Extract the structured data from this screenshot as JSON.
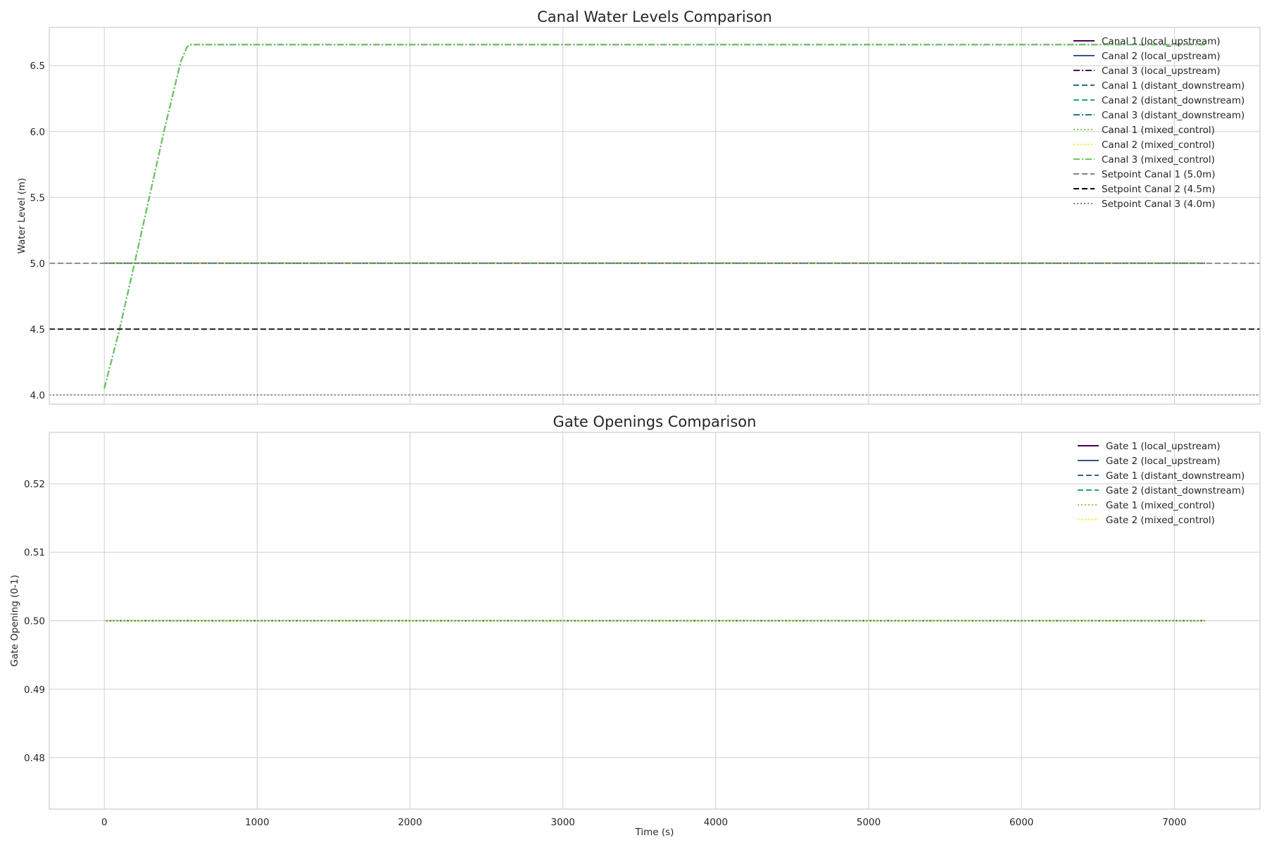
{
  "chart_data": [
    {
      "type": "line",
      "title": "Canal Water Levels Comparison",
      "xlabel": "",
      "ylabel": "Water Level (m)",
      "xlim": [
        -360,
        7560
      ],
      "ylim": [
        3.93,
        6.79
      ],
      "xticks": [
        0,
        1000,
        2000,
        3000,
        4000,
        5000,
        6000,
        7000
      ],
      "show_xtick_labels": false,
      "yticks": [
        4.0,
        4.5,
        5.0,
        5.5,
        6.0,
        6.5
      ],
      "ytick_labels": [
        "4.0",
        "4.5",
        "5.0",
        "5.5",
        "6.0",
        "6.5"
      ],
      "grid": true,
      "legend_position": "top-right",
      "series": [
        {
          "name": "Canal 1 (local_upstream)",
          "color": "#440154",
          "dash": "solid",
          "x": [
            0,
            7200
          ],
          "y": [
            5.0,
            5.0
          ]
        },
        {
          "name": "Canal 2 (local_upstream)",
          "color": "#3b528b",
          "dash": "solid",
          "x": [
            0,
            7200
          ],
          "y": [
            5.0,
            5.0
          ]
        },
        {
          "name": "Canal 3 (local_upstream)",
          "color": "#440154",
          "dash": "dashdot",
          "x": [
            0,
            100,
            200,
            300,
            400,
            500,
            540,
            560,
            7200
          ],
          "y": [
            4.05,
            4.5,
            5.01,
            5.53,
            6.05,
            6.53,
            6.64,
            6.66,
            6.66
          ]
        },
        {
          "name": "Canal 1 (distant_downstream)",
          "color": "#31688e",
          "dash": "dashed",
          "x": [
            0,
            7200
          ],
          "y": [
            5.0,
            5.0
          ]
        },
        {
          "name": "Canal 2 (distant_downstream)",
          "color": "#21a585",
          "dash": "dashed",
          "x": [
            0,
            7200
          ],
          "y": [
            5.0,
            5.0
          ]
        },
        {
          "name": "Canal 3 (distant_downstream)",
          "color": "#2a788e",
          "dash": "dashdot",
          "x": [
            0,
            100,
            200,
            300,
            400,
            500,
            540,
            560,
            7200
          ],
          "y": [
            4.05,
            4.5,
            5.01,
            5.53,
            6.05,
            6.53,
            6.64,
            6.66,
            6.66
          ]
        },
        {
          "name": "Canal 1 (mixed_control)",
          "color": "#7ad151",
          "dash": "dotted",
          "x": [
            0,
            7200
          ],
          "y": [
            5.0,
            5.0
          ]
        },
        {
          "name": "Canal 2 (mixed_control)",
          "color": "#fde725",
          "dash": "dotted",
          "x": [
            0,
            7200
          ],
          "y": [
            5.0,
            5.0
          ]
        },
        {
          "name": "Canal 3 (mixed_control)",
          "color": "#6ccd5a",
          "dash": "dashdot",
          "x": [
            0,
            100,
            200,
            300,
            400,
            500,
            540,
            560,
            7200
          ],
          "y": [
            4.05,
            4.5,
            5.01,
            5.53,
            6.05,
            6.53,
            6.64,
            6.66,
            6.66
          ]
        },
        {
          "name": "Setpoint Canal 1 (5.0m)",
          "color": "#808080",
          "dash": "dashed",
          "hline": 5.0
        },
        {
          "name": "Setpoint Canal 2 (4.5m)",
          "color": "#000000",
          "dash": "dashed",
          "hline": 4.5
        },
        {
          "name": "Setpoint Canal 3 (4.0m)",
          "color": "#808080",
          "dash": "dotted",
          "hline": 4.0
        }
      ]
    },
    {
      "type": "line",
      "title": "Gate Openings Comparison",
      "xlabel": "Time (s)",
      "ylabel": "Gate Opening (0-1)",
      "xlim": [
        -360,
        7560
      ],
      "ylim": [
        0.4725,
        0.5275
      ],
      "xticks": [
        0,
        1000,
        2000,
        3000,
        4000,
        5000,
        6000,
        7000
      ],
      "xtick_labels": [
        "0",
        "1000",
        "2000",
        "3000",
        "4000",
        "5000",
        "6000",
        "7000"
      ],
      "show_xtick_labels": true,
      "yticks": [
        0.48,
        0.49,
        0.5,
        0.51,
        0.52
      ],
      "ytick_labels": [
        "0.48",
        "0.49",
        "0.50",
        "0.51",
        "0.52"
      ],
      "grid": true,
      "legend_position": "top-right",
      "series": [
        {
          "name": "Gate 1 (local_upstream)",
          "color": "#440154",
          "dash": "solid",
          "x": [
            0,
            7200
          ],
          "y": [
            0.5,
            0.5
          ]
        },
        {
          "name": "Gate 2 (local_upstream)",
          "color": "#3b528b",
          "dash": "solid",
          "x": [
            0,
            7200
          ],
          "y": [
            0.5,
            0.5
          ]
        },
        {
          "name": "Gate 1 (distant_downstream)",
          "color": "#31688e",
          "dash": "dashed",
          "x": [
            0,
            7200
          ],
          "y": [
            0.5,
            0.5
          ]
        },
        {
          "name": "Gate 2 (distant_downstream)",
          "color": "#21a585",
          "dash": "dashed",
          "x": [
            0,
            7200
          ],
          "y": [
            0.5,
            0.5
          ]
        },
        {
          "name": "Gate 1 (mixed_control)",
          "color": "#7ad151",
          "dash": "dotted",
          "x": [
            0,
            7200
          ],
          "y": [
            0.5,
            0.5
          ]
        },
        {
          "name": "Gate 2 (mixed_control)",
          "color": "#fde725",
          "dash": "dotted",
          "x": [
            0,
            7200
          ],
          "y": [
            0.5,
            0.5
          ]
        }
      ]
    }
  ]
}
